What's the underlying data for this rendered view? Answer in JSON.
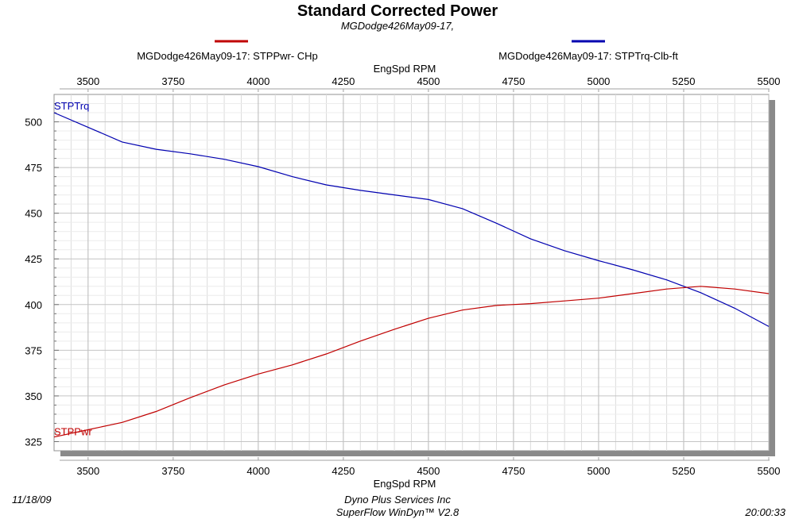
{
  "header": {
    "title": "Standard Corrected Power",
    "subtitle": "MGDodge426May09-17,"
  },
  "legend": {
    "placement": "top",
    "items": [
      {
        "label": "MGDodge426May09-17: STPPwr- CHp",
        "color": "#c00000"
      },
      {
        "label": "MGDodge426May09-17: STPTrq-Clb-ft",
        "color": "#0000b0"
      }
    ]
  },
  "footer": {
    "date": "11/18/09",
    "company": "Dyno Plus Services Inc",
    "software": "SuperFlow WinDyn™ V2.8",
    "time": "20:00:33"
  },
  "chart_data": {
    "type": "line",
    "xlabel": "EngSpd  RPM",
    "ylabel": "",
    "xlim": [
      3400,
      5500
    ],
    "ylim": [
      320,
      515
    ],
    "x_ticks": [
      3500,
      3750,
      4000,
      4250,
      4500,
      4750,
      5000,
      5250,
      5500
    ],
    "x_tick_labels": [
      "3500",
      "3750",
      "4000",
      "4250",
      "4500",
      "4750",
      "5000",
      "5250",
      "5500"
    ],
    "y_ticks": [
      325,
      350,
      375,
      400,
      425,
      450,
      475,
      500
    ],
    "y_tick_labels": [
      "325",
      "350",
      "375",
      "400",
      "425",
      "450",
      "475",
      "500"
    ],
    "grid": true,
    "series": [
      {
        "name": "STPTrq",
        "color": "#0000b0",
        "x": [
          3400,
          3500,
          3600,
          3700,
          3800,
          3900,
          4000,
          4100,
          4200,
          4300,
          4400,
          4500,
          4600,
          4700,
          4800,
          4900,
          5000,
          5100,
          5200,
          5300,
          5400,
          5500
        ],
        "y": [
          505,
          497,
          489,
          485,
          482.5,
          479.5,
          475.5,
          470,
          465.5,
          462.5,
          460,
          457.5,
          452.5,
          444.5,
          436,
          429.5,
          424,
          419,
          413.5,
          406.5,
          398,
          388
        ]
      },
      {
        "name": "STPPwr",
        "color": "#c00000",
        "x": [
          3400,
          3500,
          3600,
          3700,
          3800,
          3900,
          4000,
          4100,
          4200,
          4300,
          4400,
          4500,
          4600,
          4700,
          4800,
          4900,
          5000,
          5100,
          5200,
          5300,
          5400,
          5500
        ],
        "y": [
          327.5,
          331.5,
          335.5,
          341.5,
          349,
          356,
          362,
          367,
          373,
          380,
          386.5,
          392.5,
          397,
          399.5,
          400.5,
          402,
          403.5,
          406,
          408.5,
          410,
          408.5,
          406
        ]
      }
    ]
  }
}
